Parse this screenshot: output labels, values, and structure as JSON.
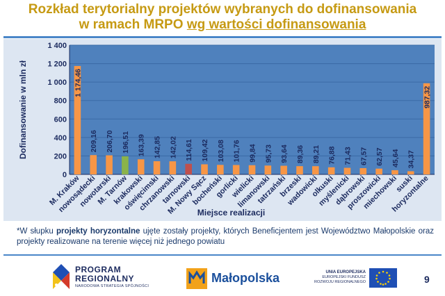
{
  "slide": {
    "title_line1": "Rozkład terytorialny projektów wybranych do dofinansowania",
    "title_line2_plain": "w ramach MRPO ",
    "title_line2_underlined": "wg wartości dofinansowania",
    "note_prefix": "*W słupku ",
    "note_bold": "projekty horyzontalne",
    "note_rest": " ujęte zostały projekty, których Beneficjentem jest Województwo Małopolskie oraz projekty realizowane na terenie więcej niż jednego powiatu",
    "page_number": "9"
  },
  "footer": {
    "program_line1": "PROGRAM",
    "program_line2": "REGIONALNY",
    "program_line3": "NARODOWA STRATEGIA SPÓJNOŚCI",
    "malopolska": "Małopolska",
    "eu_line1": "UNIA EUROPEJSKA",
    "eu_line2": "EUROPEJSKI FUNDUSZ",
    "eu_line3": "ROZWOJU REGIONALNEGO"
  },
  "chart_data": {
    "type": "bar",
    "title": "",
    "xlabel": "Miejsce realizacji",
    "ylabel": "Dofinansowanie w mln zł",
    "ylim": [
      0,
      1400
    ],
    "yticks": [
      0,
      200,
      400,
      600,
      800,
      1000,
      1200,
      1400
    ],
    "ytick_labels": [
      "0",
      "200",
      "400",
      "600",
      "800",
      "1 000",
      "1 200",
      "1 400"
    ],
    "grid": true,
    "categories": [
      "M. Kraków",
      "nowosądecki",
      "nowotarski",
      "M. Tarnów",
      "krakowski",
      "oświęcimski",
      "chrzanowski",
      "tarnowski",
      "M. Nowy Sącz",
      "bocheński",
      "gorlicki",
      "wielicki",
      "limanowski",
      "tatrzański",
      "brzeski",
      "wadowicki",
      "olkuski",
      "myślenicki",
      "dąbrowski",
      "proszowicki",
      "miechowski",
      "suski",
      "horyzontalne"
    ],
    "values": [
      1174.46,
      209.16,
      206.7,
      196.51,
      163.39,
      142.85,
      142.02,
      114.61,
      109.42,
      103.08,
      101.76,
      99.84,
      95.73,
      93.64,
      89.36,
      89.21,
      76.88,
      71.43,
      67.57,
      62.57,
      45.64,
      34.37,
      987.32
    ],
    "labels": [
      "1 174,46",
      "209,16",
      "206,70",
      "196,51",
      "163,39",
      "142,85",
      "142,02",
      "114,61",
      "109,42",
      "103,08",
      "101,76",
      "99,84",
      "95,73",
      "93,64",
      "89,36",
      "89,21",
      "76,88",
      "71,43",
      "67,57",
      "62,57",
      "45,64",
      "34,37",
      "987,32"
    ],
    "bar_colors": [
      "#f79646",
      "#f79646",
      "#f79646",
      "#8bb34a",
      "#f79646",
      "#f79646",
      "#f79646",
      "#c0504d",
      "#f79646",
      "#f79646",
      "#f79646",
      "#f79646",
      "#f79646",
      "#f79646",
      "#f79646",
      "#f79646",
      "#f79646",
      "#f79646",
      "#f79646",
      "#f79646",
      "#f79646",
      "#f79646",
      "#f79646"
    ]
  }
}
